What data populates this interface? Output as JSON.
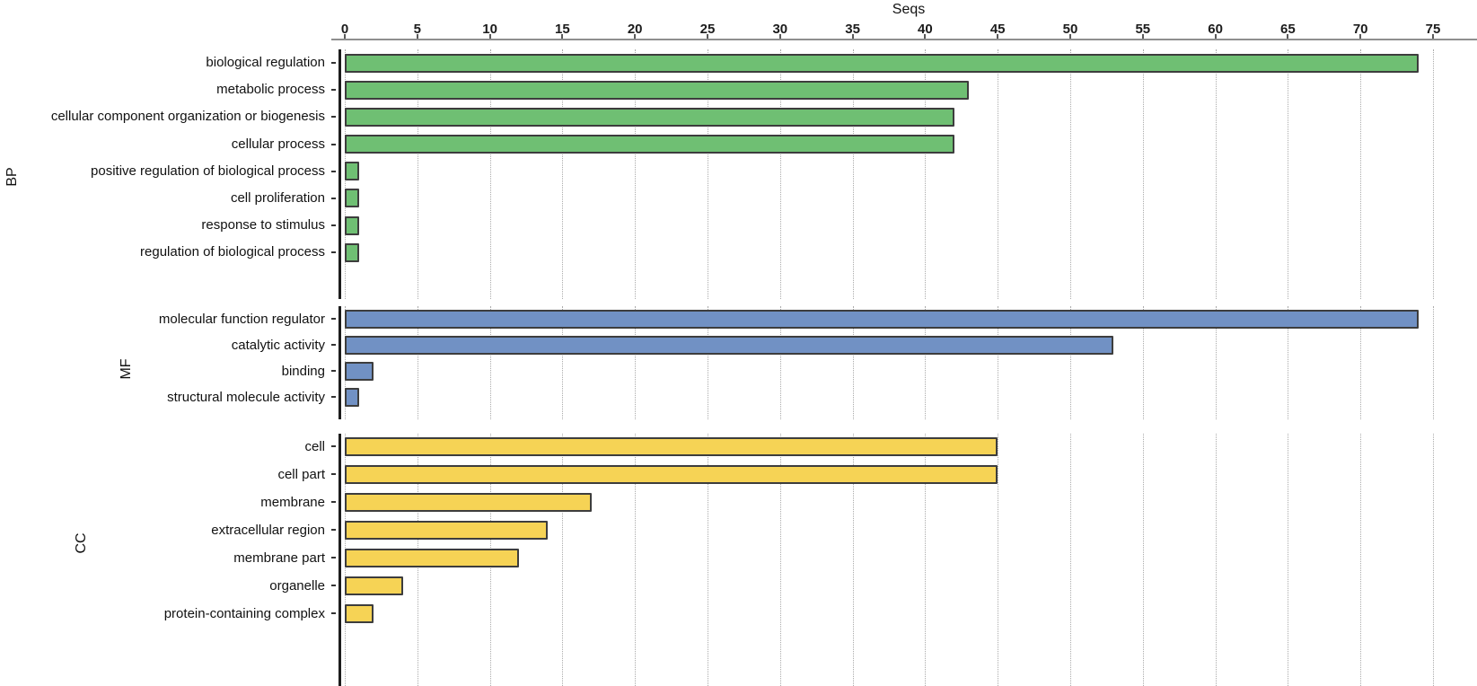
{
  "chart_data": {
    "type": "bar",
    "orientation": "horizontal",
    "title": "",
    "xlabel": "Seqs",
    "ylabel": "",
    "xlim": [
      0,
      75
    ],
    "x_ticks": [
      0,
      5,
      10,
      15,
      20,
      25,
      30,
      35,
      40,
      45,
      50,
      55,
      60,
      65,
      70,
      75
    ],
    "grid": "vertical-dotted",
    "legend": "none",
    "bar_border_color": "#3d3d3d",
    "groups": [
      {
        "name": "BP",
        "color": "#6fbf73",
        "categories": [
          "biological regulation",
          "metabolic process",
          "cellular component organization or biogenesis",
          "cellular process",
          "positive regulation of biological process",
          "cell proliferation",
          "response to stimulus",
          "regulation of biological process"
        ],
        "values": [
          74,
          43,
          42,
          42,
          1,
          1,
          1,
          1
        ]
      },
      {
        "name": "MF",
        "color": "#7191c4",
        "categories": [
          "molecular function regulator",
          "catalytic activity",
          "binding",
          "structural molecule activity"
        ],
        "values": [
          74,
          53,
          2,
          1
        ]
      },
      {
        "name": "CC",
        "color": "#f6d355",
        "categories": [
          "cell",
          "cell part",
          "membrane",
          "extracellular region",
          "membrane part",
          "organelle",
          "protein-containing complex"
        ],
        "values": [
          45,
          45,
          17,
          14,
          12,
          4,
          2
        ]
      }
    ]
  }
}
